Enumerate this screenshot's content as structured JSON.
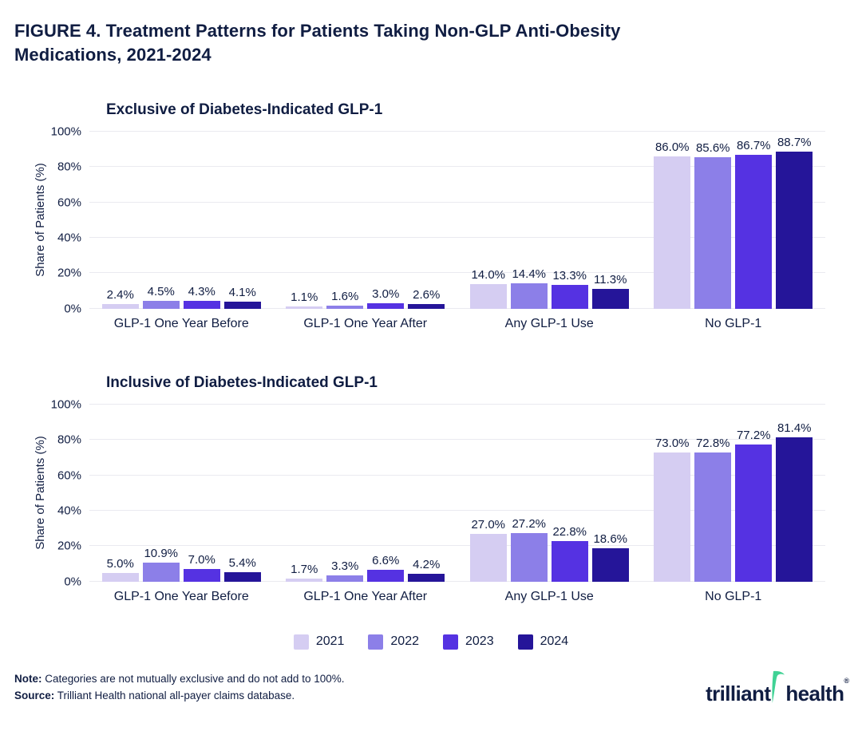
{
  "title": {
    "line1": "FIGURE 4. Treatment Patterns for Patients Taking Non-GLP Anti-Obesity",
    "line2": "Medications, 2021-2024"
  },
  "colors": {
    "text_navy": "#101D42",
    "gridline": "#EAEAF0",
    "series": {
      "2021": "#D5CDF2",
      "2022": "#8C7FE8",
      "2023": "#5532E2",
      "2024": "#251599"
    },
    "logo_green": "#40D295"
  },
  "legend": {
    "years": [
      "2021",
      "2022",
      "2023",
      "2024"
    ]
  },
  "chart_data": [
    {
      "type": "bar",
      "title": "Exclusive of Diabetes-Indicated GLP-1",
      "xlabel": "",
      "ylabel": "Share of Patients (%)",
      "ylim": [
        0,
        100
      ],
      "yticks": [
        "0%",
        "20%",
        "40%",
        "60%",
        "80%",
        "100%"
      ],
      "grid": true,
      "legend_position": "shared-bottom",
      "value_label_suffix": "%",
      "categories": [
        "GLP-1 One Year Before",
        "GLP-1 One Year After",
        "Any GLP-1 Use",
        "No GLP-1"
      ],
      "series": [
        {
          "name": "2021",
          "values": [
            2.4,
            1.1,
            14.0,
            86.0
          ]
        },
        {
          "name": "2022",
          "values": [
            4.5,
            1.6,
            14.4,
            85.6
          ]
        },
        {
          "name": "2023",
          "values": [
            4.3,
            3.0,
            13.3,
            86.7
          ]
        },
        {
          "name": "2024",
          "values": [
            4.1,
            2.6,
            11.3,
            88.7
          ]
        }
      ]
    },
    {
      "type": "bar",
      "title": "Inclusive of Diabetes-Indicated GLP-1",
      "xlabel": "",
      "ylabel": "Share of Patients (%)",
      "ylim": [
        0,
        100
      ],
      "yticks": [
        "0%",
        "20%",
        "40%",
        "60%",
        "80%",
        "100%"
      ],
      "grid": true,
      "legend_position": "shared-bottom",
      "value_label_suffix": "%",
      "categories": [
        "GLP-1 One Year Before",
        "GLP-1 One Year After",
        "Any GLP-1 Use",
        "No GLP-1"
      ],
      "series": [
        {
          "name": "2021",
          "values": [
            5.0,
            1.7,
            27.0,
            73.0
          ]
        },
        {
          "name": "2022",
          "values": [
            10.9,
            3.3,
            27.2,
            72.8
          ]
        },
        {
          "name": "2023",
          "values": [
            7.0,
            6.6,
            22.8,
            77.2
          ]
        },
        {
          "name": "2024",
          "values": [
            5.4,
            4.2,
            18.6,
            81.4
          ]
        }
      ]
    }
  ],
  "footer": {
    "note_label": "Note:",
    "note_text": " Categories are not mutually exclusive and do not add to 100%.",
    "source_label": "Source:",
    "source_text": " Trilliant Health national all-payer claims database.",
    "logo_word1": "trilliant",
    "logo_word2": "health",
    "logo_reg": "®"
  }
}
